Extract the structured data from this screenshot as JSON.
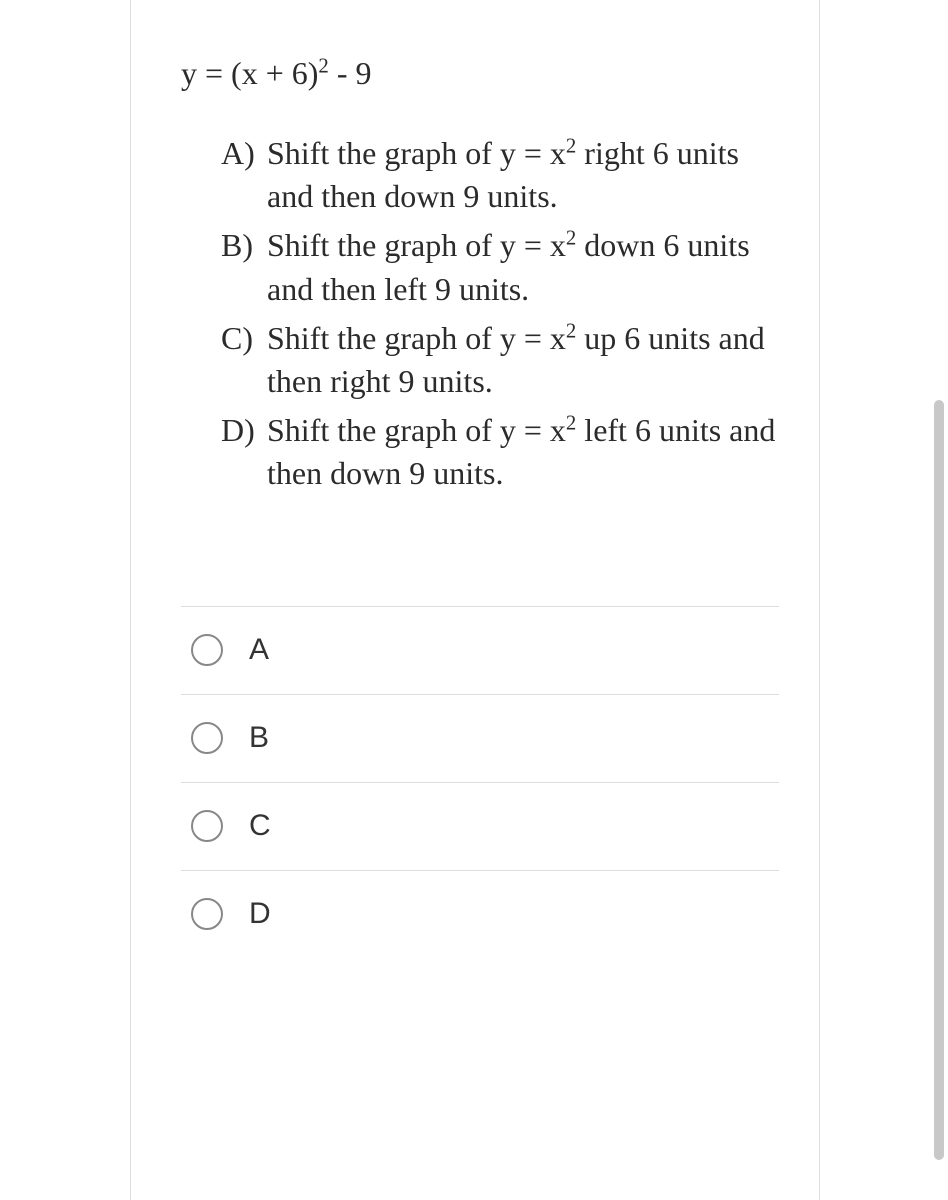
{
  "colors": {
    "background": "#ffffff",
    "text": "#2b2b2b",
    "border": "#dddddd",
    "radio_border": "#888888",
    "scrollbar": "#c8c8c8"
  },
  "typography": {
    "serif_family": "Palatino Linotype, Book Antiqua, Palatino, Georgia, serif",
    "sans_family": "Arial, Helvetica, sans-serif",
    "question_fontsize": 32,
    "option_fontsize": 30
  },
  "question": {
    "equation_html": "y = (x + 6)<sup>2</sup> - 9",
    "choices": [
      {
        "letter": "A)",
        "text_html": "Shift the graph of y = x<sup>2</sup> right 6 units and then down 9 units."
      },
      {
        "letter": "B)",
        "text_html": "Shift the graph of y = x<sup>2</sup> down 6 units and then left 9 units."
      },
      {
        "letter": "C)",
        "text_html": "Shift the graph of y = x<sup>2</sup> up 6 units and then right 9 units."
      },
      {
        "letter": "D)",
        "text_html": "Shift the graph of y = x<sup>2</sup> left 6 units and then down 9 units."
      }
    ]
  },
  "answer_options": [
    {
      "label": "A",
      "selected": false
    },
    {
      "label": "B",
      "selected": false
    },
    {
      "label": "C",
      "selected": false
    },
    {
      "label": "D",
      "selected": false
    }
  ]
}
